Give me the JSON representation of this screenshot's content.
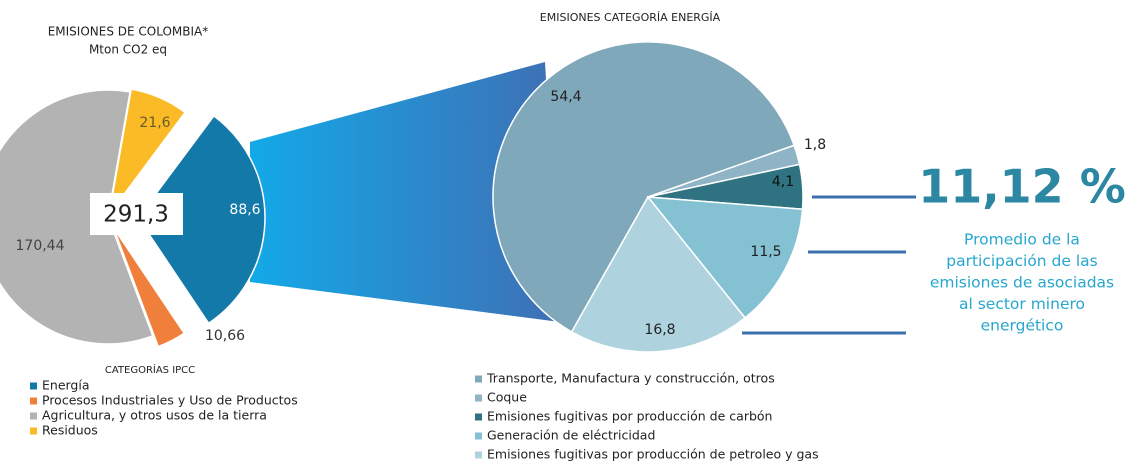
{
  "chart_data": [
    {
      "type": "pie",
      "title": "EMISIONES DE COLOMBIA*",
      "subtitle": "Mton CO2 eq",
      "center_label": "291,3",
      "legend_title": "CATEGORÍAS IPCC",
      "categories": [
        "Energía",
        "Procesos Industriales y Uso de Productos",
        "Agricultura, y otros usos de la tierra",
        "Residuos"
      ],
      "values": [
        88.6,
        10.66,
        170.44,
        21.6
      ],
      "value_labels": [
        "88,6",
        "10,66",
        "170,44",
        "21,6"
      ],
      "colors": [
        "#1379a8",
        "#ef7f3a",
        "#b3b3b3",
        "#fbbb26"
      ]
    },
    {
      "type": "pie",
      "title": "EMISIONES CATEGORÍA ENERGÍA",
      "categories": [
        "Transporte, Manufactura y construcción, otros",
        "Coque",
        "Emisiones fugitivas por producción de carbón",
        "Generación de eléctricidad",
        "Emisiones fugitivas por producción de petroleo y gas"
      ],
      "values": [
        54.4,
        1.8,
        4.1,
        11.5,
        16.8
      ],
      "value_labels": [
        "54,4",
        "1,8",
        "4,1",
        "11,5",
        "16,8"
      ],
      "colors": [
        "#80a8bb",
        "#8eb4c6",
        "#2f7282",
        "#84c1d3",
        "#aed3df"
      ]
    }
  ],
  "annotation": {
    "headline": "11,12 %",
    "lines": [
      "Promedio de la",
      "participación de las",
      "emisiones de asociadas",
      "al sector minero",
      "energético"
    ]
  }
}
